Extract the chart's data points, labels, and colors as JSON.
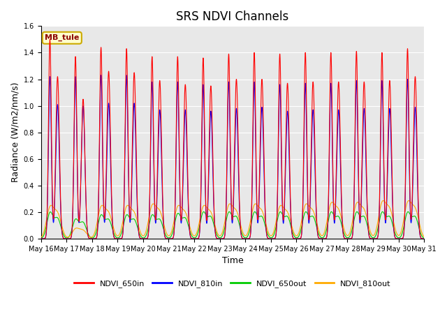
{
  "title": "SRS NDVI Channels",
  "xlabel": "Time",
  "ylabel": "Radiance (W/m2/nm/s)",
  "ylim": [
    0,
    1.6
  ],
  "annotation": "MB_tule",
  "background_color": "#e8e8e8",
  "legend": [
    "NDVI_650in",
    "NDVI_810in",
    "NDVI_650out",
    "NDVI_810out"
  ],
  "colors": [
    "#ff0000",
    "#0000ff",
    "#00cc00",
    "#ffaa00"
  ],
  "start_day": 16,
  "end_day": 31,
  "num_days": 15,
  "peak_650in": [
    1.5,
    1.37,
    1.44,
    1.43,
    1.37,
    1.37,
    1.36,
    1.39,
    1.4,
    1.39,
    1.4,
    1.4,
    1.41,
    1.4,
    1.43
  ],
  "peak2_650in": [
    1.22,
    1.05,
    1.26,
    1.25,
    1.19,
    1.16,
    1.15,
    1.2,
    1.2,
    1.17,
    1.18,
    1.18,
    1.18,
    1.19,
    1.22
  ],
  "peak_810in": [
    1.22,
    1.22,
    1.23,
    1.23,
    1.18,
    1.18,
    1.16,
    1.18,
    1.18,
    1.16,
    1.17,
    1.17,
    1.19,
    1.19,
    1.2
  ],
  "peak2_810in": [
    1.01,
    1.0,
    1.02,
    1.02,
    0.97,
    0.97,
    0.96,
    0.98,
    0.99,
    0.96,
    0.97,
    0.97,
    0.98,
    0.98,
    0.99
  ],
  "peak_650out": [
    0.19,
    0.14,
    0.17,
    0.17,
    0.17,
    0.18,
    0.19,
    0.19,
    0.19,
    0.19,
    0.19,
    0.19,
    0.19,
    0.19,
    0.19
  ],
  "peak2_650out": [
    0.15,
    0.12,
    0.14,
    0.14,
    0.14,
    0.15,
    0.16,
    0.16,
    0.16,
    0.16,
    0.16,
    0.16,
    0.16,
    0.16,
    0.16
  ],
  "peak_810out": [
    0.22,
    0.07,
    0.22,
    0.22,
    0.23,
    0.22,
    0.22,
    0.23,
    0.23,
    0.22,
    0.23,
    0.24,
    0.24,
    0.25,
    0.25
  ],
  "peak2_810out": [
    0.18,
    0.06,
    0.18,
    0.18,
    0.19,
    0.18,
    0.18,
    0.19,
    0.19,
    0.18,
    0.19,
    0.2,
    0.2,
    0.21,
    0.21
  ],
  "title_fontsize": 12,
  "tick_fontsize": 7,
  "label_fontsize": 9
}
